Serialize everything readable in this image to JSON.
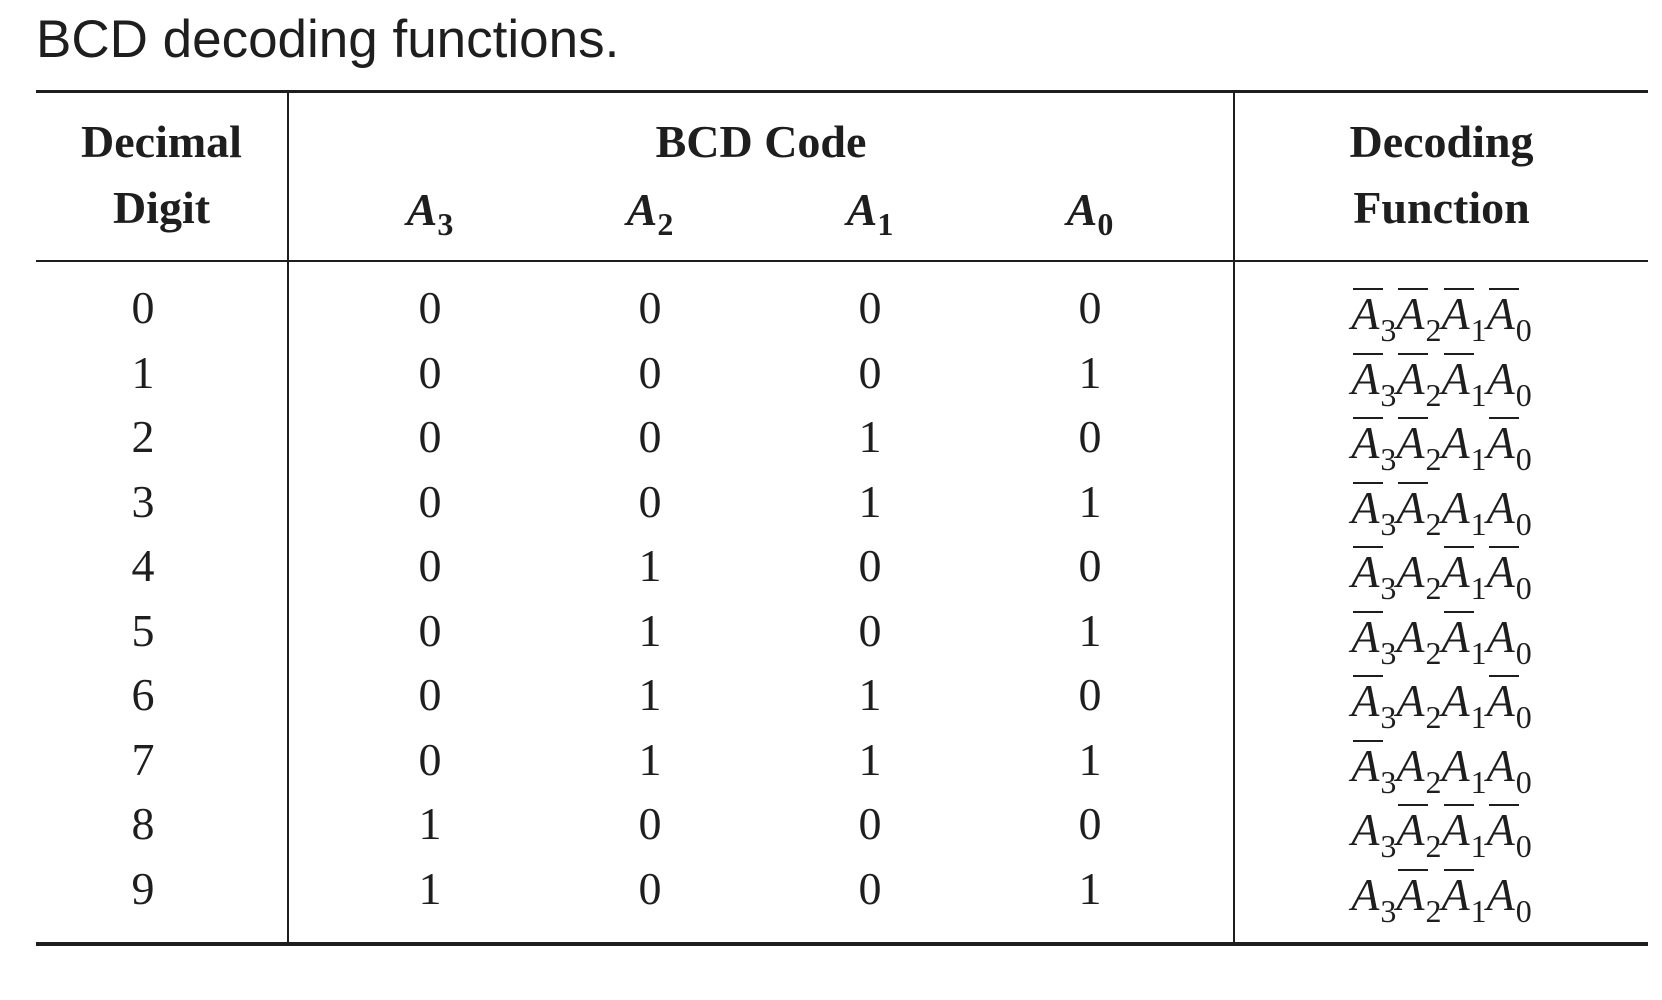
{
  "caption": "BCD decoding functions.",
  "headers": {
    "decimal_line1": "Decimal",
    "decimal_line2": "Digit",
    "bcd_group": "BCD Code",
    "bits": [
      {
        "letter": "A",
        "sub": "3"
      },
      {
        "letter": "A",
        "sub": "2"
      },
      {
        "letter": "A",
        "sub": "1"
      },
      {
        "letter": "A",
        "sub": "0"
      }
    ],
    "function_line1": "Decoding",
    "function_line2": "Function"
  },
  "rows": [
    {
      "digit": "0",
      "bits": [
        "0",
        "0",
        "0",
        "0"
      ],
      "function": [
        {
          "letter": "A",
          "sub": "3",
          "bar": true
        },
        {
          "letter": "A",
          "sub": "2",
          "bar": true
        },
        {
          "letter": "A",
          "sub": "1",
          "bar": true
        },
        {
          "letter": "A",
          "sub": "0",
          "bar": true
        }
      ]
    },
    {
      "digit": "1",
      "bits": [
        "0",
        "0",
        "0",
        "1"
      ],
      "function": [
        {
          "letter": "A",
          "sub": "3",
          "bar": true
        },
        {
          "letter": "A",
          "sub": "2",
          "bar": true
        },
        {
          "letter": "A",
          "sub": "1",
          "bar": true
        },
        {
          "letter": "A",
          "sub": "0",
          "bar": false
        }
      ]
    },
    {
      "digit": "2",
      "bits": [
        "0",
        "0",
        "1",
        "0"
      ],
      "function": [
        {
          "letter": "A",
          "sub": "3",
          "bar": true
        },
        {
          "letter": "A",
          "sub": "2",
          "bar": true
        },
        {
          "letter": "A",
          "sub": "1",
          "bar": false
        },
        {
          "letter": "A",
          "sub": "0",
          "bar": true
        }
      ]
    },
    {
      "digit": "3",
      "bits": [
        "0",
        "0",
        "1",
        "1"
      ],
      "function": [
        {
          "letter": "A",
          "sub": "3",
          "bar": true
        },
        {
          "letter": "A",
          "sub": "2",
          "bar": true
        },
        {
          "letter": "A",
          "sub": "1",
          "bar": false
        },
        {
          "letter": "A",
          "sub": "0",
          "bar": false
        }
      ]
    },
    {
      "digit": "4",
      "bits": [
        "0",
        "1",
        "0",
        "0"
      ],
      "function": [
        {
          "letter": "A",
          "sub": "3",
          "bar": true
        },
        {
          "letter": "A",
          "sub": "2",
          "bar": false
        },
        {
          "letter": "A",
          "sub": "1",
          "bar": true
        },
        {
          "letter": "A",
          "sub": "0",
          "bar": true
        }
      ]
    },
    {
      "digit": "5",
      "bits": [
        "0",
        "1",
        "0",
        "1"
      ],
      "function": [
        {
          "letter": "A",
          "sub": "3",
          "bar": true
        },
        {
          "letter": "A",
          "sub": "2",
          "bar": false
        },
        {
          "letter": "A",
          "sub": "1",
          "bar": true
        },
        {
          "letter": "A",
          "sub": "0",
          "bar": false
        }
      ]
    },
    {
      "digit": "6",
      "bits": [
        "0",
        "1",
        "1",
        "0"
      ],
      "function": [
        {
          "letter": "A",
          "sub": "3",
          "bar": true
        },
        {
          "letter": "A",
          "sub": "2",
          "bar": false
        },
        {
          "letter": "A",
          "sub": "1",
          "bar": false
        },
        {
          "letter": "A",
          "sub": "0",
          "bar": true
        }
      ]
    },
    {
      "digit": "7",
      "bits": [
        "0",
        "1",
        "1",
        "1"
      ],
      "function": [
        {
          "letter": "A",
          "sub": "3",
          "bar": true
        },
        {
          "letter": "A",
          "sub": "2",
          "bar": false
        },
        {
          "letter": "A",
          "sub": "1",
          "bar": false
        },
        {
          "letter": "A",
          "sub": "0",
          "bar": false
        }
      ]
    },
    {
      "digit": "8",
      "bits": [
        "1",
        "0",
        "0",
        "0"
      ],
      "function": [
        {
          "letter": "A",
          "sub": "3",
          "bar": false
        },
        {
          "letter": "A",
          "sub": "2",
          "bar": true
        },
        {
          "letter": "A",
          "sub": "1",
          "bar": true
        },
        {
          "letter": "A",
          "sub": "0",
          "bar": true
        }
      ]
    },
    {
      "digit": "9",
      "bits": [
        "1",
        "0",
        "0",
        "1"
      ],
      "function": [
        {
          "letter": "A",
          "sub": "3",
          "bar": false
        },
        {
          "letter": "A",
          "sub": "2",
          "bar": true
        },
        {
          "letter": "A",
          "sub": "1",
          "bar": true
        },
        {
          "letter": "A",
          "sub": "0",
          "bar": false
        }
      ]
    }
  ]
}
